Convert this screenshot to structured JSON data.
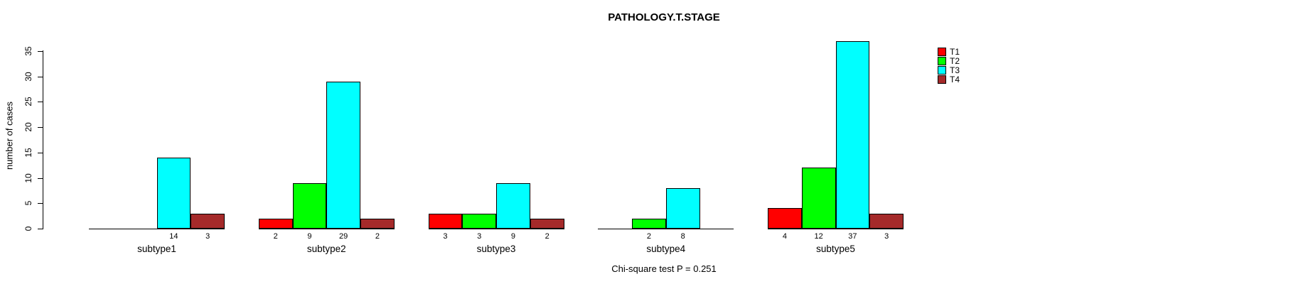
{
  "chart_data": {
    "type": "bar",
    "title": "PATHOLOGY.T.STAGE",
    "ylabel": "number of cases",
    "xlabel": "",
    "ylim": [
      0,
      35
    ],
    "yticks": [
      0,
      5,
      10,
      15,
      20,
      25,
      30,
      35
    ],
    "grid": false,
    "legend_position": "right",
    "categories": [
      "subtype1",
      "subtype2",
      "subtype3",
      "subtype4",
      "subtype5"
    ],
    "series": [
      {
        "name": "T1",
        "color": "#FF0000",
        "values": [
          0,
          2,
          3,
          0,
          4
        ]
      },
      {
        "name": "T2",
        "color": "#00FF00",
        "values": [
          0,
          9,
          3,
          2,
          12
        ]
      },
      {
        "name": "T3",
        "color": "#00FFFF",
        "values": [
          14,
          29,
          9,
          8,
          37
        ]
      },
      {
        "name": "T4",
        "color": "#A52A2A",
        "values": [
          3,
          2,
          2,
          0,
          3
        ]
      }
    ],
    "bar_value_labels_shown": true,
    "annotation": "Chi-square test P = 0.251"
  }
}
